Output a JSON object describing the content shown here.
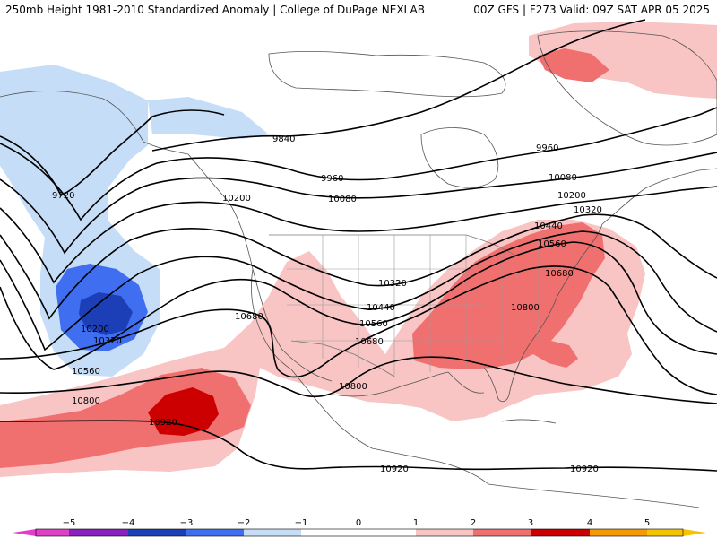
{
  "header": {
    "title_left": "250mb Height 1981-2010 Standardized Anomaly | College of DuPage NEXLAB",
    "title_right": "00Z GFS | F273 Valid: 09Z SAT APR 05 2025"
  },
  "colors": {
    "anom_neg5": "#e040c8",
    "anom_neg4": "#8a20c0",
    "anom_neg3": "#1c3fb8",
    "anom_neg2": "#3f6ff0",
    "anom_neg1": "#c6ddf7",
    "anom_0": "#ffffff",
    "anom_pos1": "#f8c4c4",
    "anom_pos2": "#f07070",
    "anom_pos3": "#cc0000",
    "anom_pos4": "#f59a00",
    "anom_pos5": "#f5c400"
  },
  "contour_labels": [
    {
      "id": "c9840",
      "text": "9840"
    },
    {
      "id": "c9720",
      "text": "9720"
    },
    {
      "id": "c9960a",
      "text": "9960"
    },
    {
      "id": "c9960b",
      "text": "9960"
    },
    {
      "id": "c10080a",
      "text": "10080"
    },
    {
      "id": "c10080b",
      "text": "10080"
    },
    {
      "id": "c10200a",
      "text": "10200"
    },
    {
      "id": "c10200b",
      "text": "10200"
    },
    {
      "id": "c10200c",
      "text": "10200"
    },
    {
      "id": "c10320a",
      "text": "10320"
    },
    {
      "id": "c10320b",
      "text": "10320"
    },
    {
      "id": "c10320c",
      "text": "10320"
    },
    {
      "id": "c10440a",
      "text": "10440"
    },
    {
      "id": "c10440b",
      "text": "10440"
    },
    {
      "id": "c10560a",
      "text": "10560"
    },
    {
      "id": "c10560b",
      "text": "10560"
    },
    {
      "id": "c10560c",
      "text": "10560"
    },
    {
      "id": "c10680a",
      "text": "10680"
    },
    {
      "id": "c10680b",
      "text": "10680"
    },
    {
      "id": "c10680c",
      "text": "10680"
    },
    {
      "id": "c10800a",
      "text": "10800"
    },
    {
      "id": "c10800b",
      "text": "10800"
    },
    {
      "id": "c10800c",
      "text": "10800"
    },
    {
      "id": "c10920a",
      "text": "10920"
    },
    {
      "id": "c10920b",
      "text": "10920"
    },
    {
      "id": "c10920c",
      "text": "10920"
    }
  ],
  "colorbar": {
    "ticks": [
      "−5",
      "−4",
      "−3",
      "−2",
      "−1",
      "0",
      "1",
      "2",
      "3",
      "4",
      "5"
    ]
  }
}
